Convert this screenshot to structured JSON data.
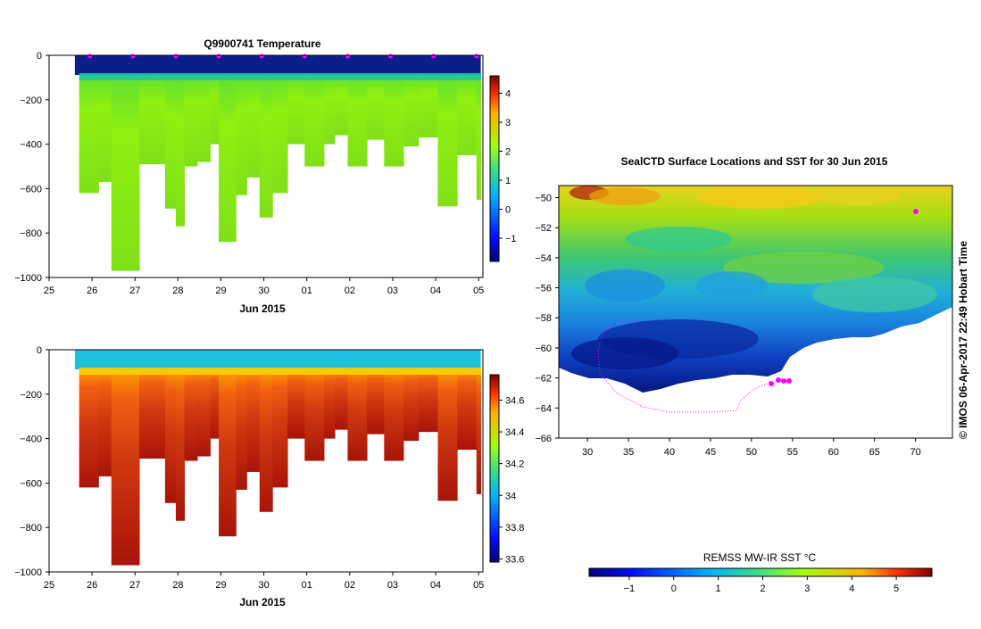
{
  "chart_data": [
    {
      "type": "heatmap",
      "title": "Q9900741  Temperature",
      "xlabel": "Jun 2015",
      "x_ticks": [
        "25",
        "26",
        "27",
        "28",
        "29",
        "30",
        "01",
        "02",
        "03",
        "04",
        "05"
      ],
      "y_ticks": [
        "0",
        "−200",
        "−400",
        "−600",
        "−800",
        "−1000"
      ],
      "ylim": [
        -1000,
        0
      ],
      "colorbar_ticks": [
        "4",
        "3",
        "2",
        "1",
        "0",
        "−1"
      ],
      "colorbar_range": [
        -1.8,
        4.6
      ],
      "profiles": [
        {
          "day": 25.7,
          "max_depth": 620
        },
        {
          "day": 26.15,
          "max_depth": 570
        },
        {
          "day": 26.45,
          "max_depth": 970
        },
        {
          "day": 26.75,
          "max_depth": 970
        },
        {
          "day": 27.1,
          "max_depth": 490
        },
        {
          "day": 27.45,
          "max_depth": 490
        },
        {
          "day": 27.7,
          "max_depth": 690
        },
        {
          "day": 27.95,
          "max_depth": 770
        },
        {
          "day": 28.15,
          "max_depth": 500
        },
        {
          "day": 28.45,
          "max_depth": 480
        },
        {
          "day": 28.75,
          "max_depth": 400
        },
        {
          "day": 28.95,
          "max_depth": 840
        },
        {
          "day": 29.35,
          "max_depth": 630
        },
        {
          "day": 29.6,
          "max_depth": 550
        },
        {
          "day": 29.9,
          "max_depth": 730
        },
        {
          "day": 30.2,
          "max_depth": 620
        },
        {
          "day": 30.55,
          "max_depth": 400
        },
        {
          "day": 30.95,
          "max_depth": 500
        },
        {
          "day": 31.4,
          "max_depth": 400
        },
        {
          "day": 31.65,
          "max_depth": 360
        },
        {
          "day": 31.95,
          "max_depth": 500
        },
        {
          "day": 32.4,
          "max_depth": 380
        },
        {
          "day": 32.8,
          "max_depth": 500
        },
        {
          "day": 33.25,
          "max_depth": 410
        },
        {
          "day": 33.6,
          "max_depth": 370
        },
        {
          "day": 34.05,
          "max_depth": 680
        },
        {
          "day": 34.5,
          "max_depth": 450
        },
        {
          "day": 34.95,
          "max_depth": 650
        }
      ],
      "surface_markers": [
        25.95,
        26.95,
        27.95,
        28.95,
        29.95,
        30.95,
        31.95,
        32.95,
        33.95,
        34.95
      ]
    },
    {
      "type": "heatmap",
      "xlabel": "Jun 2015",
      "x_ticks": [
        "25",
        "26",
        "27",
        "28",
        "29",
        "30",
        "01",
        "02",
        "03",
        "04",
        "05"
      ],
      "y_ticks": [
        "0",
        "−200",
        "−400",
        "−600",
        "−800",
        "−1000"
      ],
      "ylim": [
        -1000,
        0
      ],
      "colorbar_ticks": [
        "34.6",
        "34.4",
        "34.2",
        "34",
        "33.8",
        "33.6"
      ],
      "colorbar_range": [
        33.58,
        34.76
      ]
    },
    {
      "type": "heatmap",
      "title": "SealCTD Surface Locations and SST for 30 Jun 2015",
      "x_ticks": [
        "30",
        "35",
        "40",
        "45",
        "50",
        "55",
        "60",
        "65",
        "70"
      ],
      "y_ticks": [
        "−50",
        "−52",
        "−54",
        "−56",
        "−58",
        "−60",
        "−62",
        "−64",
        "−66"
      ],
      "xlim": [
        26.5,
        74.5
      ],
      "ylim": [
        -66,
        -49.2
      ],
      "colorbar_label": "REMSS MW-IR SST °C",
      "colorbar_ticks": [
        "−1",
        "0",
        "1",
        "2",
        "3",
        "4",
        "5"
      ],
      "colorbar_range": [
        -1.9,
        5.8
      ],
      "side_text": "©  IMOS 06-Apr-2017 22:49 Hobart Time"
    }
  ],
  "colors": {
    "temp_surface": "#0a1f8a",
    "temp_deep": "#7de01a",
    "salt_surface": "#1cc0e0",
    "salt_deep": "#b01a0c",
    "track": "#ff00ff",
    "land": "#ffffff"
  }
}
